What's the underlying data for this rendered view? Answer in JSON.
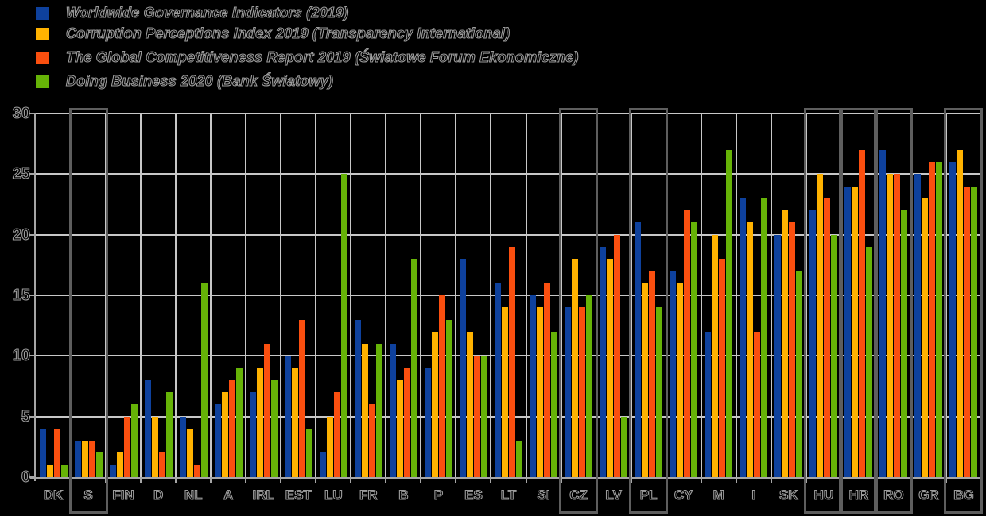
{
  "legend": {
    "items": [
      {
        "label": "Worldwide Governance Indicators (2019)",
        "color": "#0E419D"
      },
      {
        "label": "Corruption Perceptions Index 2019 (Transparency International)",
        "color": "#FFB200"
      },
      {
        "label": "The Global Competitiveness Report 2019 (Światowe Forum Ekonomiczne)",
        "color": "#FA4F0F"
      },
      {
        "label": "Doing Business 2020 (Bank Światowy)",
        "color": "#66B307"
      }
    ]
  },
  "chart_data": {
    "type": "bar",
    "title": "",
    "xlabel": "",
    "ylabel": "",
    "ylim": [
      0,
      30
    ],
    "yticks": [
      0,
      5,
      10,
      15,
      20,
      25,
      30
    ],
    "grid": true,
    "legend_position": "top-left",
    "categories": [
      "DK",
      "S",
      "FIN",
      "D",
      "NL",
      "A",
      "IRL",
      "EST",
      "LU",
      "FR",
      "B",
      "P",
      "ES",
      "LT",
      "SI",
      "CZ",
      "LV",
      "PL",
      "CY",
      "M",
      "I",
      "SK",
      "HU",
      "HR",
      "RO",
      "GR",
      "BG"
    ],
    "highlighted_categories": [
      "S",
      "CZ",
      "PL",
      "HU",
      "HR",
      "RO",
      "BG"
    ],
    "series": [
      {
        "name": "Worldwide Governance Indicators (2019)",
        "color": "#0E419D",
        "values": [
          4,
          3,
          1,
          8,
          5,
          6,
          7,
          10,
          2,
          13,
          11,
          9,
          18,
          16,
          15,
          14,
          19,
          21,
          17,
          12,
          23,
          20,
          22,
          24,
          27,
          25,
          26
        ]
      },
      {
        "name": "Corruption Perceptions Index 2019 (Transparency International)",
        "color": "#FFB200",
        "values": [
          1,
          3,
          2,
          5,
          4,
          7,
          9,
          9,
          5,
          11,
          8,
          12,
          12,
          14,
          14,
          18,
          18,
          16,
          16,
          20,
          21,
          22,
          25,
          24,
          25,
          23,
          27
        ]
      },
      {
        "name": "The Global Competitiveness Report 2019 (Światowe Forum Ekonomiczne)",
        "color": "#FA4F0F",
        "values": [
          4,
          3,
          5,
          2,
          1,
          8,
          11,
          13,
          7,
          6,
          9,
          15,
          10,
          19,
          16,
          14,
          20,
          17,
          22,
          18,
          12,
          21,
          23,
          27,
          25,
          26,
          24
        ]
      },
      {
        "name": "Doing Business 2020 (Bank Światowy)",
        "color": "#66B307",
        "values": [
          1,
          2,
          6,
          7,
          16,
          9,
          8,
          4,
          25,
          11,
          18,
          13,
          10,
          3,
          12,
          15,
          5,
          14,
          21,
          27,
          23,
          17,
          20,
          19,
          22,
          26,
          24
        ]
      }
    ]
  },
  "colors": {
    "background": "#000000",
    "gridline": "#C7C7C7",
    "axis": "#A6A6A6",
    "highlight_box": "#5E5E5E",
    "text_outline": "#9C9C9C"
  }
}
